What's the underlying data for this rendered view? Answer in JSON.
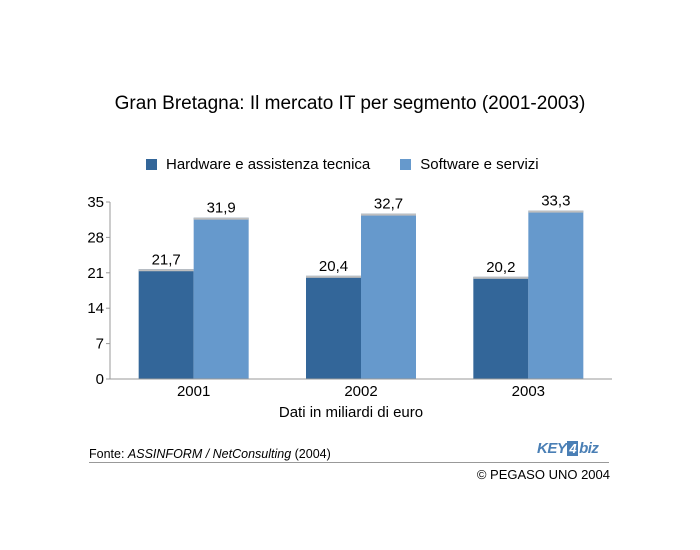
{
  "chart_data": {
    "type": "bar",
    "title": "Gran Bretagna: Il mercato IT per segmento (2001-2003)",
    "categories": [
      "2001",
      "2002",
      "2003"
    ],
    "series": [
      {
        "name": "Hardware e assistenza tecnica",
        "values": [
          21.7,
          20.4,
          20.2
        ],
        "labels": [
          "21,7",
          "20,4",
          "20,2"
        ],
        "color": "#336699"
      },
      {
        "name": "Software e servizi",
        "values": [
          31.9,
          32.7,
          33.3
        ],
        "labels": [
          "31,9",
          "32,7",
          "33,3"
        ],
        "color": "#6699cc"
      }
    ],
    "xlabel": "Dati in miliardi di euro",
    "ylabel": "",
    "ylim": [
      0,
      35
    ],
    "yticks": [
      0,
      7,
      14,
      21,
      28,
      35
    ],
    "legend_position": "top",
    "grid": false
  },
  "footer": {
    "source_prefix": "Fonte: ",
    "source_italic": "ASSINFORM / NetConsulting",
    "source_suffix": " (2004)",
    "copyright": "© PEGASO UNO 2004",
    "logo_left": "KEY",
    "logo_mid": "4",
    "logo_right": "biz"
  }
}
